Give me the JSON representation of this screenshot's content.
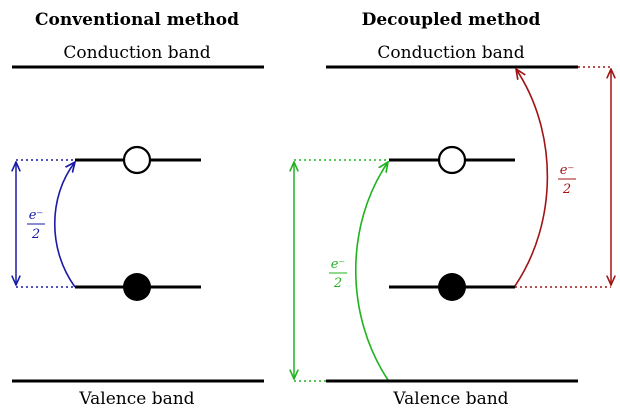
{
  "left_panel": {
    "title": "Conventional method",
    "conduction_label": "Conduction band",
    "valence_label": "Valence band",
    "transfer_label": {
      "numerator": "e⁻",
      "denominator": "2"
    }
  },
  "right_panel": {
    "title": "Decoupled method",
    "conduction_label": "Conduction band",
    "valence_label": "Valence band",
    "transfer_label_green": {
      "numerator": "e⁻",
      "denominator": "2"
    },
    "transfer_label_red": {
      "numerator": "e⁻",
      "denominator": "2"
    }
  },
  "colors": {
    "line": "#000000",
    "blue": "#1a1aa6",
    "green": "#1fb31f",
    "red": "#a01414"
  }
}
